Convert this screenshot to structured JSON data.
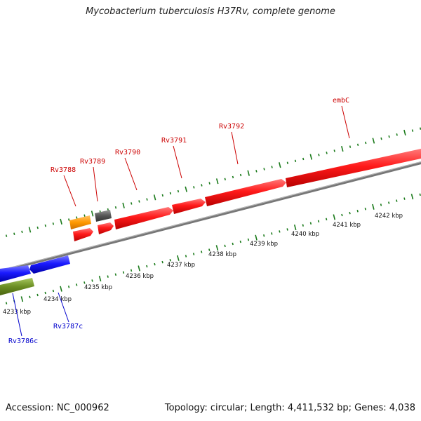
{
  "title": "Mycobacterium tuberculosis H37Rv, complete genome",
  "footer": {
    "accession": "Accession: NC_000962",
    "summary": "Topology: circular; Length: 4,411,532 bp; Genes: 4,038"
  },
  "colors": {
    "forward_cds": "#ff1a1a",
    "reverse_cds": "#1a1aff",
    "orange_feature": "#ff9900",
    "gray_feature": "#555555",
    "olive_feature": "#6b8e23",
    "backbone": "#777777",
    "ticks": "#1a7a1a",
    "forward_label": "#cc0000",
    "reverse_label": "#0000cc"
  },
  "scale_labels": [
    "4233 kbp",
    "4234 kbp",
    "4235 kbp",
    "4236 kbp",
    "4237 kbp",
    "4238 kbp",
    "4239 kbp",
    "4240 kbp",
    "4241 kbp",
    "4242 kbp"
  ],
  "forward_gene_labels": [
    "Rv3788",
    "Rv3789",
    "Rv3790",
    "Rv3791",
    "Rv3792",
    "embC"
  ],
  "reverse_gene_labels": [
    "Rv3786c",
    "Rv3787c"
  ]
}
